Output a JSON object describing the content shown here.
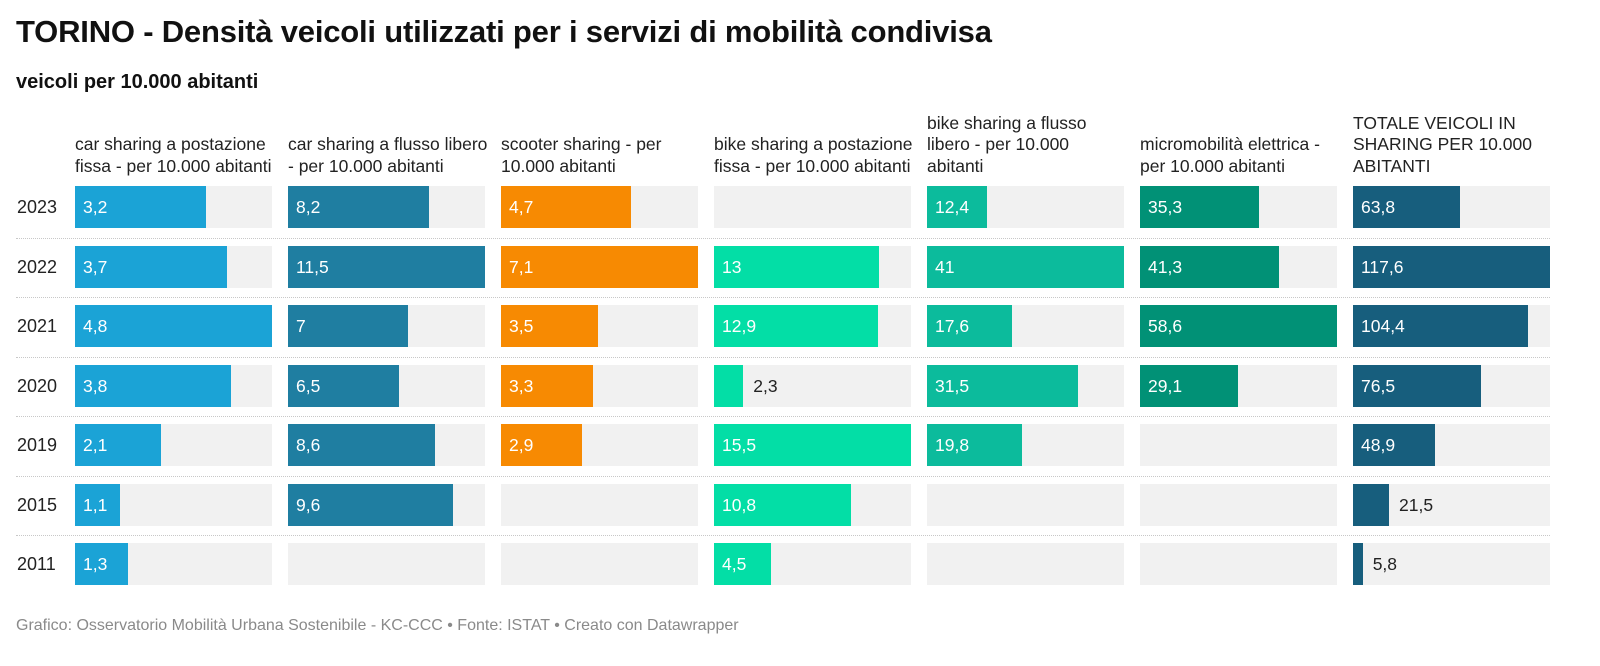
{
  "title": "TORINO - Densità veicoli utilizzati per i servizi di mobilità condivisa",
  "subtitle": "veicoli per 10.000 abitanti",
  "footer": "Grafico: Osservatorio Mobilità Urbana Sostenibile - KC-CCC • Fonte: ISTAT • Creato con Datawrapper",
  "chart_data": {
    "type": "bar",
    "orientation": "horizontal",
    "layout": "small-multiples",
    "title": "TORINO - Densità veicoli utilizzati per i servizi di mobilità condivisa",
    "subtitle": "veicoli per 10.000 abitanti",
    "categories": [
      "2023",
      "2022",
      "2021",
      "2020",
      "2019",
      "2015",
      "2011"
    ],
    "series": [
      {
        "name": "car sharing a postazione fissa - per 10.000 abitanti",
        "color": "#1ba3d6",
        "max": 4.8,
        "values": [
          3.2,
          3.7,
          4.8,
          3.8,
          2.1,
          1.1,
          1.3
        ],
        "labels": [
          "3,2",
          "3,7",
          "4,8",
          "3,8",
          "2,1",
          "1,1",
          "1,3"
        ]
      },
      {
        "name": "car sharing a flusso libero - per 10.000 abitanti",
        "color": "#1f7ea1",
        "max": 11.5,
        "values": [
          8.2,
          11.5,
          7,
          6.5,
          8.6,
          9.6,
          null
        ],
        "labels": [
          "8,2",
          "11,5",
          "7",
          "6,5",
          "8,6",
          "9,6",
          ""
        ]
      },
      {
        "name": "scooter sharing - per 10.000 abitanti",
        "color": "#f78a02",
        "max": 7.1,
        "values": [
          4.7,
          7.1,
          3.5,
          3.3,
          2.9,
          null,
          null
        ],
        "labels": [
          "4,7",
          "7,1",
          "3,5",
          "3,3",
          "2,9",
          "",
          ""
        ]
      },
      {
        "name": "bike sharing a postazione fissa - per 10.000 abitanti",
        "color": "#03dea6",
        "max": 15.5,
        "values": [
          null,
          13,
          12.9,
          2.3,
          15.5,
          10.8,
          4.5
        ],
        "labels": [
          "",
          "13",
          "12,9",
          "2,3",
          "15,5",
          "10,8",
          "4,5"
        ]
      },
      {
        "name": "bike sharing a flusso libero - per 10.000 abitanti",
        "color": "#0cbb9c",
        "max": 41,
        "values": [
          12.4,
          41,
          17.6,
          31.5,
          19.8,
          null,
          null
        ],
        "labels": [
          "12,4",
          "41",
          "17,6",
          "31,5",
          "19,8",
          "",
          ""
        ]
      },
      {
        "name": "micromobilità elettrica - per 10.000 abitanti",
        "color": "#019176",
        "max": 58.6,
        "values": [
          35.3,
          41.3,
          58.6,
          29.1,
          null,
          null,
          null
        ],
        "labels": [
          "35,3",
          "41,3",
          "58,6",
          "29,1",
          "",
          "",
          ""
        ]
      },
      {
        "name": "TOTALE VEICOLI IN SHARING PER 10.000 ABITANTI",
        "color": "#175e7d",
        "max": 117.6,
        "values": [
          63.8,
          117.6,
          104.4,
          76.5,
          48.9,
          21.5,
          5.8
        ],
        "labels": [
          "63,8",
          "117,6",
          "104,4",
          "76,5",
          "48,9",
          "21,5",
          "5,8"
        ]
      }
    ]
  }
}
